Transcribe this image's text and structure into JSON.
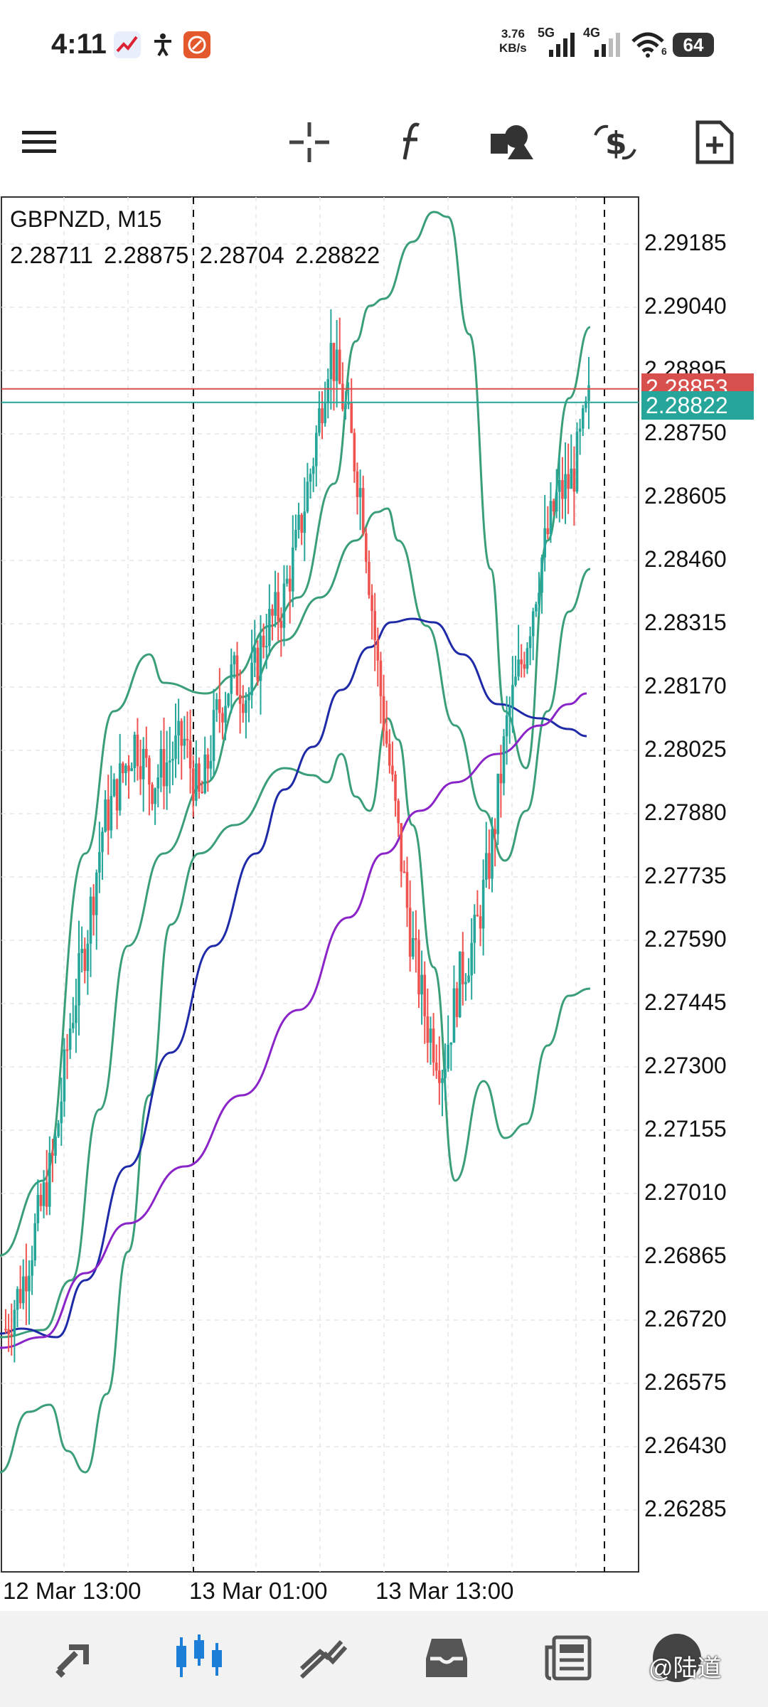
{
  "status_bar": {
    "time": "4:11",
    "net_speed_value": "3.76",
    "net_speed_unit": "KB/s",
    "sim1": "5G",
    "sim2": "4G",
    "wifi_sub": "6",
    "battery": "64"
  },
  "toolbar": {
    "menu_icon": "hamburger-menu-icon",
    "crosshair_icon": "crosshair-icon",
    "indicators_icon": "function-icon",
    "objects_icon": "shapes-icon",
    "trade_icon": "dollar-exchange-icon",
    "new_order_icon": "add-document-icon"
  },
  "chart": {
    "symbol_timeframe": "GBPNZD, M15",
    "ohlc": [
      "2.28711",
      "2.28875",
      "2.28704",
      "2.28822"
    ],
    "price_axis": [
      "2.29185",
      "2.29040",
      "2.28895",
      "2.28750",
      "2.28605",
      "2.28460",
      "2.28315",
      "2.28170",
      "2.28025",
      "2.27880",
      "2.27735",
      "2.27590",
      "2.27445",
      "2.27300",
      "2.27155",
      "2.27010",
      "2.26865",
      "2.26720",
      "2.26575",
      "2.26430",
      "2.26285"
    ],
    "ask_tag": "2.28853",
    "bid_tag": "2.28822",
    "time_axis": [
      "12 Mar 13:00",
      "13 Mar 01:00",
      "13 Mar 13:00"
    ],
    "colors": {
      "bull": "#26a69a",
      "bear": "#ef5350",
      "bollinger": "#3a9f78",
      "ma_blue": "#1f2aa8",
      "ma_purple": "#8a24c8",
      "ask_line": "#d8504e",
      "bid_line": "#26a69a"
    }
  },
  "chart_data": {
    "type": "candlestick",
    "title": "GBPNZD, M15",
    "ylim": [
      2.262,
      2.2925
    ],
    "ohlc_last": {
      "open": 2.28711,
      "high": 2.28875,
      "low": 2.28704,
      "close": 2.28822
    },
    "x": [
      "12 Mar 13:00",
      "13 Mar 01:00",
      "13 Mar 13:00"
    ],
    "close_approx": [
      2.267,
      2.268,
      2.2695,
      2.271,
      2.274,
      2.276,
      2.2785,
      2.2795,
      2.2805,
      2.2795,
      2.28,
      2.2805,
      2.279,
      2.281,
      2.282,
      2.2815,
      2.283,
      2.2835,
      2.285,
      2.287,
      2.2895,
      2.288,
      2.286,
      2.282,
      2.279,
      2.276,
      2.274,
      2.273,
      2.275,
      2.276,
      2.278,
      2.281,
      2.2825,
      2.2845,
      2.286,
      2.2865,
      2.2882
    ]
  },
  "bottom_nav": {
    "items": [
      "quotes-icon",
      "charts-icon",
      "trade-icon",
      "history-icon",
      "news-icon",
      "profile-icon"
    ],
    "active": "charts-icon",
    "watermark": "@陆道"
  }
}
